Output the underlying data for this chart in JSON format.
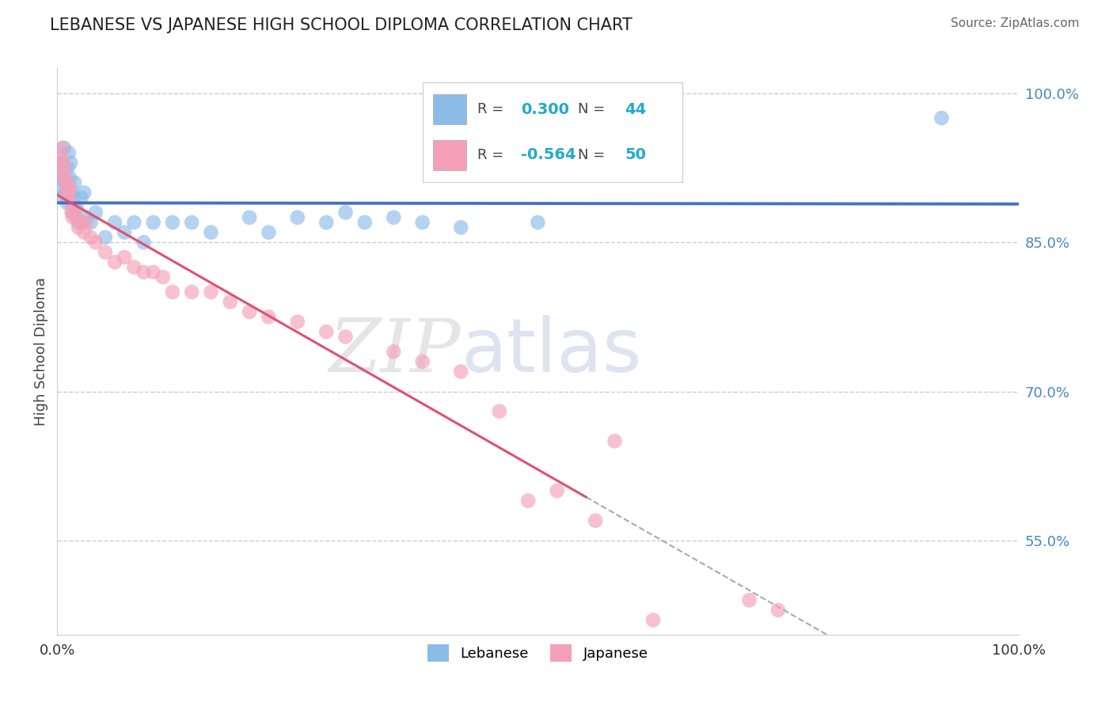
{
  "title": "LEBANESE VS JAPANESE HIGH SCHOOL DIPLOMA CORRELATION CHART",
  "source": "Source: ZipAtlas.com",
  "ylabel": "High School Diploma",
  "legend_label1": "Lebanese",
  "legend_label2": "Japanese",
  "R_lebanese": 0.3,
  "N_lebanese": 44,
  "R_japanese": -0.564,
  "N_japanese": 50,
  "color_lebanese": "#8BBCE8",
  "color_japanese": "#F4A0B8",
  "line_color_lebanese": "#4472C4",
  "line_color_japanese": "#E05070",
  "watermark_zip": "ZIP",
  "watermark_atlas": "atlas",
  "xlim": [
    0.0,
    1.0
  ],
  "ylim": [
    0.455,
    1.025
  ],
  "y_tick_values_right": [
    0.55,
    0.7,
    0.85,
    1.0
  ],
  "y_tick_labels_right": [
    "55.0%",
    "70.0%",
    "85.0%",
    "100.0%"
  ],
  "lebanese_x": [
    0.002,
    0.003,
    0.004,
    0.005,
    0.006,
    0.007,
    0.008,
    0.009,
    0.01,
    0.011,
    0.012,
    0.013,
    0.014,
    0.015,
    0.016,
    0.017,
    0.018,
    0.02,
    0.022,
    0.025,
    0.028,
    0.03,
    0.035,
    0.04,
    0.05,
    0.06,
    0.07,
    0.08,
    0.09,
    0.1,
    0.12,
    0.14,
    0.16,
    0.2,
    0.22,
    0.25,
    0.28,
    0.3,
    0.32,
    0.35,
    0.38,
    0.42,
    0.5,
    0.92
  ],
  "lebanese_y": [
    0.92,
    0.905,
    0.915,
    0.93,
    0.895,
    0.945,
    0.91,
    0.9,
    0.89,
    0.925,
    0.94,
    0.915,
    0.93,
    0.9,
    0.88,
    0.895,
    0.91,
    0.885,
    0.87,
    0.895,
    0.9,
    0.875,
    0.87,
    0.88,
    0.855,
    0.87,
    0.86,
    0.87,
    0.85,
    0.87,
    0.87,
    0.87,
    0.86,
    0.875,
    0.86,
    0.875,
    0.87,
    0.88,
    0.87,
    0.875,
    0.87,
    0.865,
    0.87,
    0.975
  ],
  "japanese_x": [
    0.002,
    0.003,
    0.004,
    0.005,
    0.006,
    0.007,
    0.008,
    0.009,
    0.01,
    0.011,
    0.012,
    0.013,
    0.014,
    0.015,
    0.016,
    0.018,
    0.02,
    0.022,
    0.025,
    0.028,
    0.03,
    0.035,
    0.04,
    0.05,
    0.06,
    0.07,
    0.08,
    0.09,
    0.1,
    0.11,
    0.12,
    0.14,
    0.16,
    0.18,
    0.2,
    0.22,
    0.25,
    0.28,
    0.3,
    0.35,
    0.38,
    0.42,
    0.46,
    0.49,
    0.52,
    0.56,
    0.58,
    0.62,
    0.72,
    0.75
  ],
  "japanese_y": [
    0.93,
    0.92,
    0.935,
    0.945,
    0.93,
    0.925,
    0.915,
    0.91,
    0.9,
    0.905,
    0.895,
    0.905,
    0.89,
    0.88,
    0.875,
    0.885,
    0.875,
    0.865,
    0.87,
    0.86,
    0.87,
    0.855,
    0.85,
    0.84,
    0.83,
    0.835,
    0.825,
    0.82,
    0.82,
    0.815,
    0.8,
    0.8,
    0.8,
    0.79,
    0.78,
    0.775,
    0.77,
    0.76,
    0.755,
    0.74,
    0.73,
    0.72,
    0.68,
    0.59,
    0.6,
    0.57,
    0.65,
    0.47,
    0.49,
    0.48
  ],
  "dash_line_x": [
    0.55,
    1.0
  ],
  "dash_line_y": [
    0.538,
    0.455
  ]
}
